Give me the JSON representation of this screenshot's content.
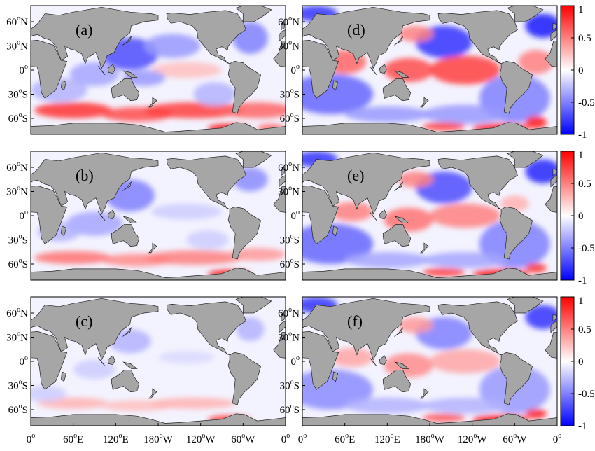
{
  "figure": {
    "left_lat_labels": [
      "60",
      "N",
      "30",
      "N",
      "0",
      "",
      "30",
      "S",
      "60",
      "S"
    ],
    "lat_ticks": [
      {
        "num": "60",
        "hem": "N"
      },
      {
        "num": "30",
        "hem": "N"
      },
      {
        "num": "0",
        "hem": ""
      },
      {
        "num": "30",
        "hem": "S"
      },
      {
        "num": "60",
        "hem": "S"
      }
    ],
    "lon_ticks": [
      {
        "num": "0",
        "hem": ""
      },
      {
        "num": "60",
        "hem": "E"
      },
      {
        "num": "120",
        "hem": "E"
      },
      {
        "num": "180",
        "hem": "W"
      },
      {
        "num": "120",
        "hem": "W"
      },
      {
        "num": "60",
        "hem": "W"
      },
      {
        "num": "0",
        "hem": ""
      }
    ],
    "degree_symbol": "o",
    "colorbar": {
      "ticks": [
        "1",
        "0.5",
        "0",
        "-0.5",
        "-1"
      ],
      "min": -1,
      "max": 1,
      "colors": {
        "neg": "#0000ff",
        "mid": "#ffffff",
        "pos": "#ff0000"
      }
    },
    "colors": {
      "land": "#a6a6a6",
      "coast": "#222222",
      "frame": "#000000"
    },
    "panels": [
      {
        "label": "(a)",
        "col": 0,
        "row": 0
      },
      {
        "label": "(b)",
        "col": 0,
        "row": 1
      },
      {
        "label": "(c)",
        "col": 0,
        "row": 2
      },
      {
        "label": "(d)",
        "col": 1,
        "row": 0
      },
      {
        "label": "(e)",
        "col": 1,
        "row": 1
      },
      {
        "label": "(f)",
        "col": 1,
        "row": 2
      }
    ]
  }
}
